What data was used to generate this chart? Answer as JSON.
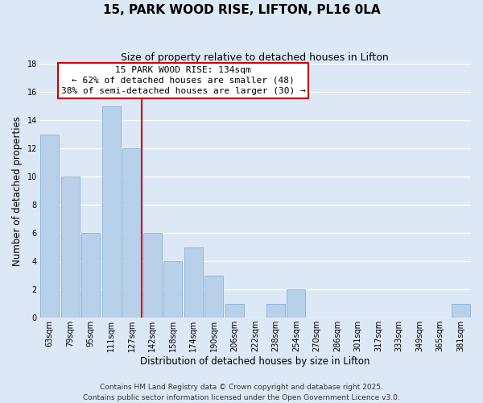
{
  "title": "15, PARK WOOD RISE, LIFTON, PL16 0LA",
  "subtitle": "Size of property relative to detached houses in Lifton",
  "xlabel": "Distribution of detached houses by size in Lifton",
  "ylabel": "Number of detached properties",
  "bar_labels": [
    "63sqm",
    "79sqm",
    "95sqm",
    "111sqm",
    "127sqm",
    "142sqm",
    "158sqm",
    "174sqm",
    "190sqm",
    "206sqm",
    "222sqm",
    "238sqm",
    "254sqm",
    "270sqm",
    "286sqm",
    "301sqm",
    "317sqm",
    "333sqm",
    "349sqm",
    "365sqm",
    "381sqm"
  ],
  "bar_values": [
    13,
    10,
    6,
    15,
    12,
    6,
    4,
    5,
    3,
    1,
    0,
    1,
    2,
    0,
    0,
    0,
    0,
    0,
    0,
    0,
    1
  ],
  "bar_color": "#b8d0ea",
  "bar_edge_color": "#7aaace",
  "background_color": "#dce8f5",
  "grid_color": "#ffffff",
  "ref_line_x": 4.5,
  "ref_line_label": "15 PARK WOOD RISE: 134sqm",
  "ref_line_color": "#cc0000",
  "annotation_line1": "← 62% of detached houses are smaller (48)",
  "annotation_line2": "38% of semi-detached houses are larger (30) →",
  "annotation_box_color": "#ffffff",
  "annotation_box_edge": "#cc0000",
  "ylim": [
    0,
    18
  ],
  "yticks": [
    0,
    2,
    4,
    6,
    8,
    10,
    12,
    14,
    16,
    18
  ],
  "footer_line1": "Contains HM Land Registry data © Crown copyright and database right 2025.",
  "footer_line2": "Contains public sector information licensed under the Open Government Licence v3.0.",
  "title_fontsize": 11,
  "subtitle_fontsize": 9,
  "axis_label_fontsize": 8.5,
  "tick_fontsize": 7,
  "annot_fontsize": 8,
  "footer_fontsize": 6.5
}
